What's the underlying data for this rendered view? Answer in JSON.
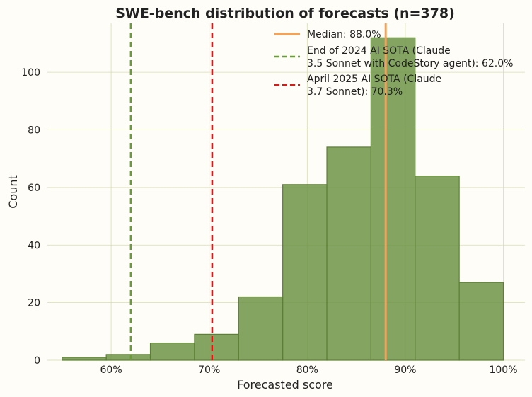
{
  "chart_data": {
    "type": "histogram",
    "title": "SWE-bench distribution of forecasts (n=378)",
    "xlabel": "Forecasted score",
    "ylabel": "Count",
    "xlim": [
      53.5,
      102.2
    ],
    "ylim": [
      0,
      117
    ],
    "x_ticks": [
      {
        "value": 60,
        "label": "60%"
      },
      {
        "value": 70,
        "label": "70%"
      },
      {
        "value": 80,
        "label": "80%"
      },
      {
        "value": 90,
        "label": "90%"
      },
      {
        "value": 100,
        "label": "100%"
      }
    ],
    "y_ticks": [
      {
        "value": 0,
        "label": "0"
      },
      {
        "value": 20,
        "label": "20"
      },
      {
        "value": 40,
        "label": "40"
      },
      {
        "value": 60,
        "label": "60"
      },
      {
        "value": 80,
        "label": "80"
      },
      {
        "value": 100,
        "label": "100"
      }
    ],
    "bins": [
      {
        "x0": 55.0,
        "x1": 59.5,
        "count": 1
      },
      {
        "x0": 59.5,
        "x1": 64.0,
        "count": 2
      },
      {
        "x0": 64.0,
        "x1": 68.5,
        "count": 6
      },
      {
        "x0": 68.5,
        "x1": 73.0,
        "count": 9
      },
      {
        "x0": 73.0,
        "x1": 77.5,
        "count": 22
      },
      {
        "x0": 77.5,
        "x1": 82.0,
        "count": 61
      },
      {
        "x0": 82.0,
        "x1": 86.5,
        "count": 74
      },
      {
        "x0": 86.5,
        "x1": 91.0,
        "count": 112
      },
      {
        "x0": 91.0,
        "x1": 95.5,
        "count": 64
      },
      {
        "x0": 95.5,
        "x1": 100.0,
        "count": 27
      }
    ],
    "reference_lines": [
      {
        "name": "median-line",
        "value": 88.0,
        "color": "#f0a35c",
        "style": "solid",
        "legend_lines": [
          "Median: 88.0%"
        ]
      },
      {
        "name": "sota-2024-line",
        "value": 62.0,
        "color": "#6a9a3a",
        "style": "dashed",
        "legend_lines": [
          "End of 2024 AI SOTA (Claude",
          "3.5 Sonnet with CodeStory agent): 62.0%"
        ]
      },
      {
        "name": "sota-2025-line",
        "value": 70.3,
        "color": "#ee1111",
        "style": "dashed",
        "legend_lines": [
          "April 2025 AI SOTA (Claude",
          "3.7 Sonnet): 70.3%"
        ]
      }
    ],
    "colors": {
      "bar_fill": "#6f9447",
      "bar_stroke": "#5d7f35",
      "grid": "#d8ddb0",
      "background": "#fffdf7"
    },
    "grid": true,
    "legend_position": "top-right"
  }
}
